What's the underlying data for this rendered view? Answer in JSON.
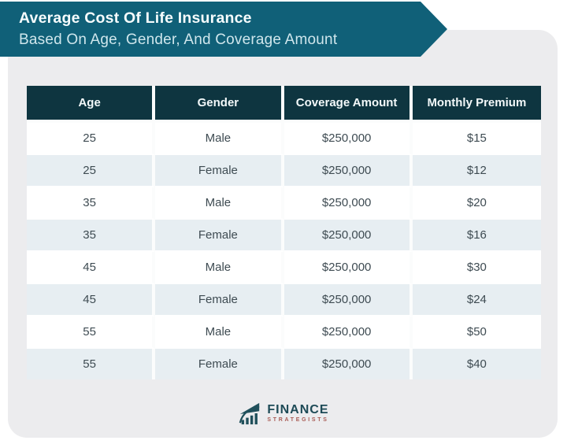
{
  "banner": {
    "title": "Average Cost Of Life Insurance",
    "subtitle": "Based On Age, Gender, And Coverage Amount"
  },
  "chart_data": {
    "type": "table",
    "title": "Average Cost Of Life Insurance Based On Age, Gender, And Coverage Amount",
    "columns": [
      "Age",
      "Gender",
      "Coverage Amount",
      "Monthly Premium"
    ],
    "rows": [
      [
        "25",
        "Male",
        "$250,000",
        "$15"
      ],
      [
        "25",
        "Female",
        "$250,000",
        "$12"
      ],
      [
        "35",
        "Male",
        "$250,000",
        "$20"
      ],
      [
        "35",
        "Female",
        "$250,000",
        "$16"
      ],
      [
        "45",
        "Male",
        "$250,000",
        "$30"
      ],
      [
        "45",
        "Female",
        "$250,000",
        "$24"
      ],
      [
        "55",
        "Male",
        "$250,000",
        "$50"
      ],
      [
        "55",
        "Female",
        "$250,000",
        "$40"
      ]
    ]
  },
  "logo": {
    "brand": "FINANCE",
    "sub": "STRATEGISTS"
  },
  "colors": {
    "banner_teal": "#106078",
    "header_dark": "#0e3540",
    "row_alt": "#e7eef2",
    "card_gray": "#ececee",
    "body_text": "#3e4b52",
    "brand_teal": "#1d4a56",
    "brand_red": "#a95c55"
  }
}
